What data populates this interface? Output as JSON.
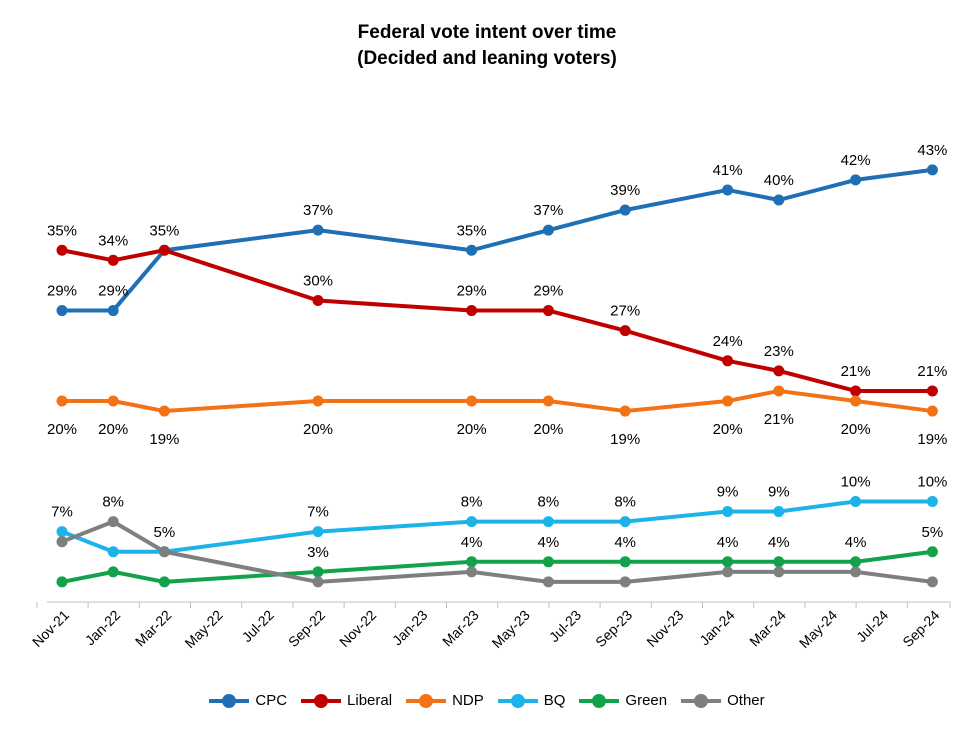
{
  "chart_data": {
    "type": "line",
    "title": "Federal vote intent over time",
    "subtitle": "(Decided and leaning voters)",
    "xlabel": "",
    "ylabel": "",
    "x_ticks": [
      "Nov-21",
      "Jan-22",
      "Mar-22",
      "May-22",
      "Jul-22",
      "Sep-22",
      "Nov-22",
      "Jan-23",
      "Mar-23",
      "May-23",
      "Jul-23",
      "Sep-23",
      "Nov-23",
      "Jan-24",
      "Mar-24",
      "May-24",
      "Jul-24",
      "Sep-24"
    ],
    "ylim": [
      0,
      45
    ],
    "grid": false,
    "legend_position": "bottom",
    "series": [
      {
        "name": "CPC",
        "color": "#1F6FB4",
        "label_pos": "above",
        "points": [
          {
            "x": "Nov-21",
            "y": 29,
            "label": "29%"
          },
          {
            "x": "Jan-22",
            "y": 29,
            "label": "29%"
          },
          {
            "x": "Mar-22",
            "y": 35,
            "label": "35%"
          },
          {
            "x": "Sep-22",
            "y": 37,
            "label": "37%"
          },
          {
            "x": "Mar-23",
            "y": 35,
            "label": "35%"
          },
          {
            "x": "Jun-23",
            "y": 37,
            "label": "37%"
          },
          {
            "x": "Sep-23",
            "y": 39,
            "label": "39%"
          },
          {
            "x": "Jan-24",
            "y": 41,
            "label": "41%"
          },
          {
            "x": "Mar-24",
            "y": 40,
            "label": "40%"
          },
          {
            "x": "Jun-24",
            "y": 42,
            "label": "42%"
          },
          {
            "x": "Sep-24",
            "y": 43,
            "label": "43%"
          }
        ]
      },
      {
        "name": "Liberal",
        "color": "#C00000",
        "label_pos": "above",
        "points": [
          {
            "x": "Nov-21",
            "y": 35,
            "label": "35%"
          },
          {
            "x": "Jan-22",
            "y": 34,
            "label": "34%"
          },
          {
            "x": "Mar-22",
            "y": 35,
            "label": ""
          },
          {
            "x": "Sep-22",
            "y": 30,
            "label": "30%"
          },
          {
            "x": "Mar-23",
            "y": 29,
            "label": "29%"
          },
          {
            "x": "Jun-23",
            "y": 29,
            "label": "29%"
          },
          {
            "x": "Sep-23",
            "y": 27,
            "label": "27%"
          },
          {
            "x": "Jan-24",
            "y": 24,
            "label": "24%"
          },
          {
            "x": "Mar-24",
            "y": 23,
            "label": "23%"
          },
          {
            "x": "Jun-24",
            "y": 21,
            "label": "21%"
          },
          {
            "x": "Sep-24",
            "y": 21,
            "label": "21%"
          }
        ]
      },
      {
        "name": "NDP",
        "color": "#F47216",
        "label_pos": "below",
        "points": [
          {
            "x": "Nov-21",
            "y": 20,
            "label": "20%"
          },
          {
            "x": "Jan-22",
            "y": 20,
            "label": "20%"
          },
          {
            "x": "Mar-22",
            "y": 19,
            "label": "19%"
          },
          {
            "x": "Sep-22",
            "y": 20,
            "label": "20%"
          },
          {
            "x": "Mar-23",
            "y": 20,
            "label": "20%"
          },
          {
            "x": "Jun-23",
            "y": 20,
            "label": "20%"
          },
          {
            "x": "Sep-23",
            "y": 19,
            "label": "19%"
          },
          {
            "x": "Jan-24",
            "y": 20,
            "label": "20%"
          },
          {
            "x": "Mar-24",
            "y": 21,
            "label": "21%"
          },
          {
            "x": "Jun-24",
            "y": 20,
            "label": "20%"
          },
          {
            "x": "Sep-24",
            "y": 19,
            "label": "19%"
          }
        ]
      },
      {
        "name": "BQ",
        "color": "#1CB4E8",
        "label_pos": "above",
        "points": [
          {
            "x": "Nov-21",
            "y": 7,
            "label": "7%"
          },
          {
            "x": "Jan-22",
            "y": 5,
            "label": ""
          },
          {
            "x": "Mar-22",
            "y": 5,
            "label": "5%"
          },
          {
            "x": "Sep-22",
            "y": 7,
            "label": "7%"
          },
          {
            "x": "Mar-23",
            "y": 8,
            "label": "8%"
          },
          {
            "x": "Jun-23",
            "y": 8,
            "label": "8%"
          },
          {
            "x": "Sep-23",
            "y": 8,
            "label": "8%"
          },
          {
            "x": "Jan-24",
            "y": 9,
            "label": "9%"
          },
          {
            "x": "Mar-24",
            "y": 9,
            "label": "9%"
          },
          {
            "x": "Jun-24",
            "y": 10,
            "label": "10%"
          },
          {
            "x": "Sep-24",
            "y": 10,
            "label": "10%"
          }
        ]
      },
      {
        "name": "Green",
        "color": "#12A24A",
        "label_pos": "above",
        "points": [
          {
            "x": "Nov-21",
            "y": 2,
            "label": ""
          },
          {
            "x": "Jan-22",
            "y": 3,
            "label": ""
          },
          {
            "x": "Mar-22",
            "y": 2,
            "label": ""
          },
          {
            "x": "Sep-22",
            "y": 3,
            "label": "3%"
          },
          {
            "x": "Mar-23",
            "y": 4,
            "label": "4%"
          },
          {
            "x": "Jun-23",
            "y": 4,
            "label": "4%"
          },
          {
            "x": "Sep-23",
            "y": 4,
            "label": "4%"
          },
          {
            "x": "Jan-24",
            "y": 4,
            "label": "4%"
          },
          {
            "x": "Mar-24",
            "y": 4,
            "label": "4%"
          },
          {
            "x": "Jun-24",
            "y": 4,
            "label": "4%"
          },
          {
            "x": "Sep-24",
            "y": 5,
            "label": "5%"
          }
        ]
      },
      {
        "name": "Other",
        "color": "#7F7F7F",
        "label_pos": "above",
        "points": [
          {
            "x": "Nov-21",
            "y": 6,
            "label": ""
          },
          {
            "x": "Jan-22",
            "y": 8,
            "label": "8%"
          },
          {
            "x": "Mar-22",
            "y": 5,
            "label": ""
          },
          {
            "x": "Sep-22",
            "y": 2,
            "label": ""
          },
          {
            "x": "Mar-23",
            "y": 3,
            "label": ""
          },
          {
            "x": "Jun-23",
            "y": 2,
            "label": ""
          },
          {
            "x": "Sep-23",
            "y": 2,
            "label": ""
          },
          {
            "x": "Jan-24",
            "y": 3,
            "label": ""
          },
          {
            "x": "Mar-24",
            "y": 3,
            "label": ""
          },
          {
            "x": "Jun-24",
            "y": 3,
            "label": ""
          },
          {
            "x": "Sep-24",
            "y": 2,
            "label": ""
          }
        ]
      }
    ]
  }
}
